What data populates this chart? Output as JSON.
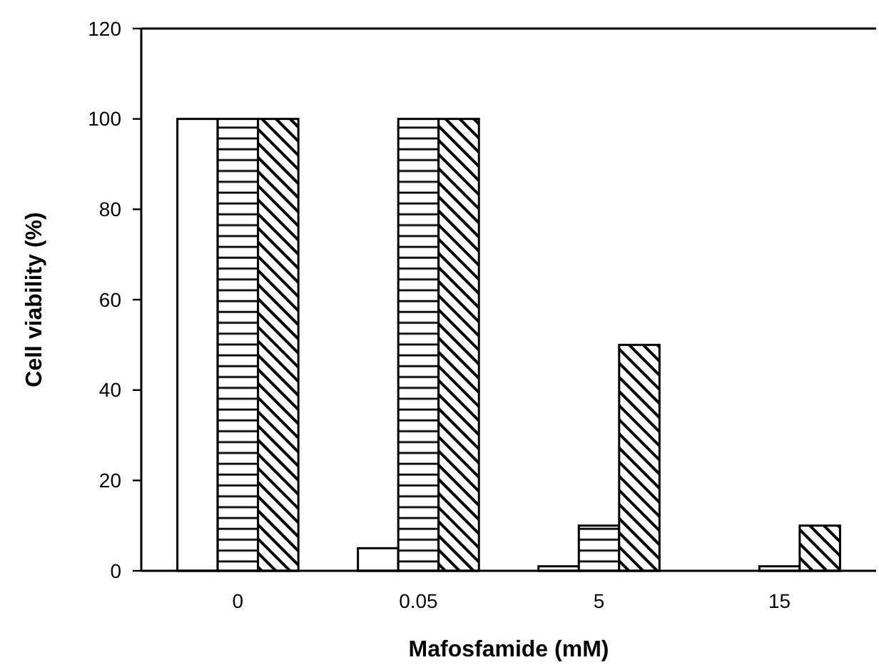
{
  "chart_data": {
    "type": "bar",
    "xlabel": "Mafosfamide (mM)",
    "ylabel": "Cell viability (%)",
    "categories": [
      "0",
      "0.05",
      "5",
      "15"
    ],
    "series": [
      {
        "color": "#ffffff",
        "values": [
          100,
          5,
          1,
          0
        ]
      },
      {
        "color": "#000000",
        "values": [
          100,
          100,
          10,
          1
        ]
      },
      {
        "color": "#000000",
        "values": [
          100,
          100,
          50,
          10
        ]
      }
    ],
    "ylim": [
      0,
      120
    ],
    "yticks": [
      0,
      20,
      40,
      60,
      80,
      100,
      120
    ],
    "grid": false
  }
}
